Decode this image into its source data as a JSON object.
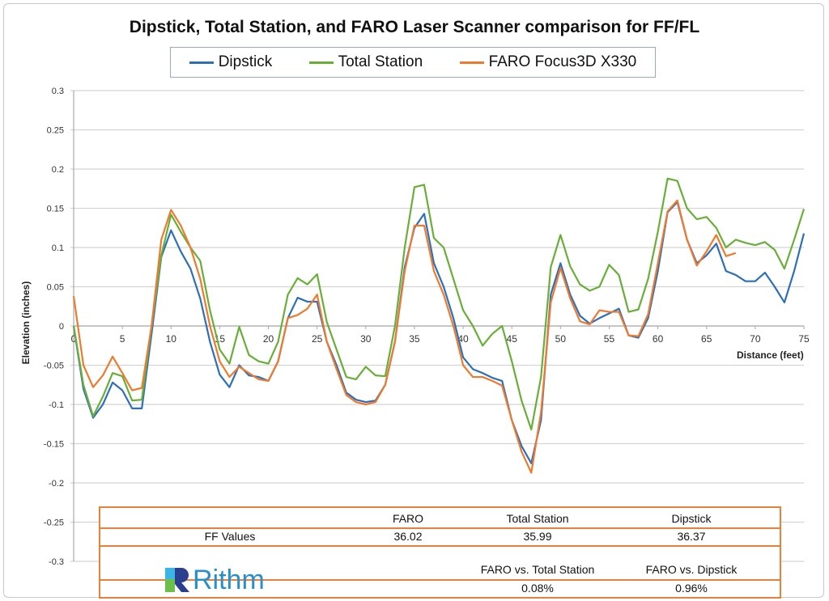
{
  "chart_data": {
    "type": "line",
    "title": "Dipstick, Total Station, and FARO Laser Scanner comparison for FF/FL",
    "xlabel": "Distance (feet)",
    "ylabel": "Elevation (inches)",
    "xlim": [
      0,
      75
    ],
    "ylim": [
      -0.3,
      0.3
    ],
    "x_ticks": [
      "0",
      "5",
      "10",
      "15",
      "20",
      "25",
      "30",
      "35",
      "40",
      "45",
      "50",
      "55",
      "60",
      "65",
      "70",
      "75"
    ],
    "y_ticks": [
      "0.3",
      "0.25",
      "0.2",
      "0.15",
      "0.1",
      "0.05",
      "0",
      "-0.05",
      "-0.1",
      "-0.15",
      "-0.2",
      "-0.25",
      "-0.3"
    ],
    "grid": "horizontal",
    "legend_position": "top",
    "series": [
      {
        "name": "Dipstick",
        "color": "#2e6fb7",
        "values": [
          0,
          -0.08,
          -0.117,
          -0.1,
          -0.072,
          -0.082,
          -0.105,
          -0.105,
          -0.01,
          0.088,
          0.122,
          0.095,
          0.073,
          0.035,
          -0.02,
          -0.062,
          -0.078,
          -0.05,
          -0.063,
          -0.065,
          -0.07,
          -0.045,
          0.01,
          0.036,
          0.031,
          0.031,
          -0.02,
          -0.05,
          -0.085,
          -0.094,
          -0.097,
          -0.095,
          -0.075,
          -0.02,
          0.075,
          0.125,
          0.143,
          0.08,
          0.05,
          0.01,
          -0.04,
          -0.055,
          -0.06,
          -0.066,
          -0.07,
          -0.12,
          -0.153,
          -0.175,
          -0.12,
          0.04,
          0.08,
          0.04,
          0.013,
          0.003,
          0.01,
          0.016,
          0.022,
          -0.012,
          -0.015,
          0.01,
          0.07,
          0.145,
          0.158,
          0.11,
          0.08,
          0.09,
          0.105,
          0.07,
          0.065,
          0.057,
          0.057,
          0.068,
          0.05,
          0.03,
          0.07,
          0.118
        ]
      },
      {
        "name": "Total Station",
        "color": "#6aae3a",
        "values": [
          0,
          -0.075,
          -0.115,
          -0.09,
          -0.06,
          -0.064,
          -0.095,
          -0.094,
          0,
          0.09,
          0.142,
          0.12,
          0.1,
          0.083,
          0.02,
          -0.03,
          -0.048,
          -0.001,
          -0.037,
          -0.045,
          -0.048,
          -0.02,
          0.04,
          0.061,
          0.053,
          0.066,
          0.005,
          -0.03,
          -0.065,
          -0.068,
          -0.052,
          -0.063,
          -0.064,
          0,
          0.1,
          0.177,
          0.18,
          0.112,
          0.1,
          0.06,
          0.02,
          0,
          -0.025,
          -0.01,
          0,
          -0.045,
          -0.095,
          -0.132,
          -0.065,
          0.075,
          0.116,
          0.076,
          0.053,
          0.045,
          0.05,
          0.078,
          0.065,
          0.018,
          0.021,
          0.06,
          0.12,
          0.188,
          0.185,
          0.15,
          0.136,
          0.139,
          0.125,
          0.1,
          0.11,
          0.106,
          0.103,
          0.107,
          0.097,
          0.073,
          0.11,
          0.149
        ]
      },
      {
        "name": "FARO Focus3D X330",
        "color": "#ee7a30",
        "values": [
          0.038,
          -0.05,
          -0.078,
          -0.063,
          -0.039,
          -0.06,
          -0.082,
          -0.079,
          0,
          0.11,
          0.148,
          0.128,
          0.1,
          0.06,
          0,
          -0.045,
          -0.065,
          -0.052,
          -0.06,
          -0.068,
          -0.07,
          -0.045,
          0.01,
          0.014,
          0.022,
          0.04,
          -0.02,
          -0.055,
          -0.088,
          -0.097,
          -0.1,
          -0.097,
          -0.075,
          -0.02,
          0.07,
          0.128,
          0.128,
          0.07,
          0.04,
          0,
          -0.05,
          -0.065,
          -0.065,
          -0.07,
          -0.076,
          -0.12,
          -0.16,
          -0.187,
          -0.11,
          0.03,
          0.074,
          0.035,
          0.006,
          0.002,
          0.02,
          0.018,
          0.018,
          -0.012,
          -0.013,
          0.015,
          0.08,
          0.146,
          0.16,
          0.11,
          0.077,
          0.095,
          0.116,
          0.089,
          0.093
        ]
      }
    ]
  },
  "table": {
    "headers": [
      "FARO",
      "Total Station",
      "Dipstick"
    ],
    "row_label": "FF Values",
    "values": [
      "36.02",
      "35.99",
      "36.37"
    ],
    "compare_headers": [
      "FARO vs. Total Station",
      "FARO vs. Dipstick"
    ],
    "compare_values": [
      "0.08%",
      "0.96%"
    ]
  },
  "logo": {
    "text": "Rithm"
  }
}
